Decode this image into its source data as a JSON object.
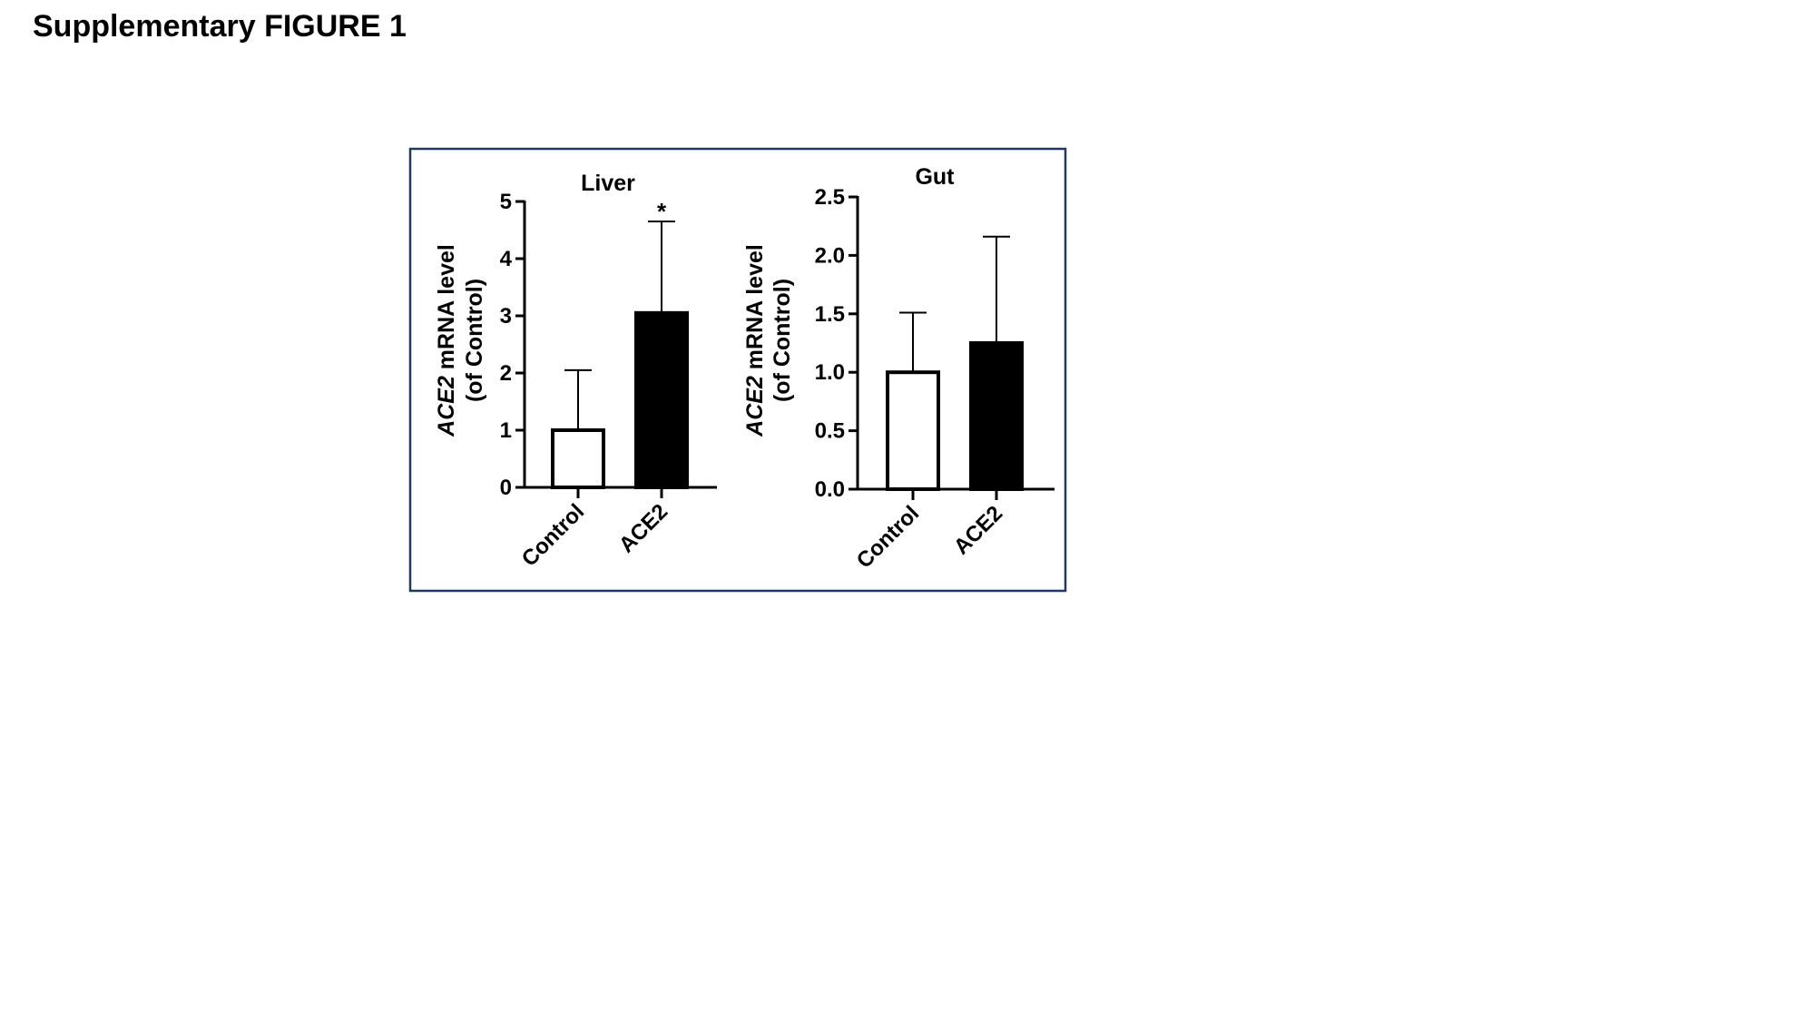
{
  "page": {
    "title": "Supplementary FIGURE 1"
  },
  "colors": {
    "frame": "#1f3864",
    "axis": "#000000",
    "control_fill": "#ffffff",
    "ace2_fill": "#000000"
  },
  "chart_data": [
    {
      "type": "bar",
      "title": "Liver",
      "ylabel_italic": "ACE2",
      "ylabel_rest": " mRNA level",
      "ylabel_line2": "(of Control)",
      "categories": [
        "Control",
        "ACE2"
      ],
      "values": [
        1.0,
        3.05
      ],
      "error_upper": [
        2.05,
        4.65
      ],
      "bar_colors": [
        "#ffffff",
        "#000000"
      ],
      "significance": [
        "",
        "*"
      ],
      "ylim": [
        0,
        5
      ],
      "yticks": [
        "0",
        "1",
        "2",
        "3",
        "4",
        "5"
      ],
      "grid": false
    },
    {
      "type": "bar",
      "title": "Gut",
      "ylabel_italic": "ACE2",
      "ylabel_rest": " mRNA level",
      "ylabel_line2": "(of Control)",
      "categories": [
        "Control",
        "ACE2"
      ],
      "values": [
        1.0,
        1.25
      ],
      "error_upper": [
        1.51,
        2.16
      ],
      "bar_colors": [
        "#ffffff",
        "#000000"
      ],
      "significance": [
        "",
        ""
      ],
      "ylim": [
        0,
        2.5
      ],
      "yticks": [
        "0.0",
        "0.5",
        "1.0",
        "1.5",
        "2.0",
        "2.5"
      ],
      "grid": false
    }
  ]
}
